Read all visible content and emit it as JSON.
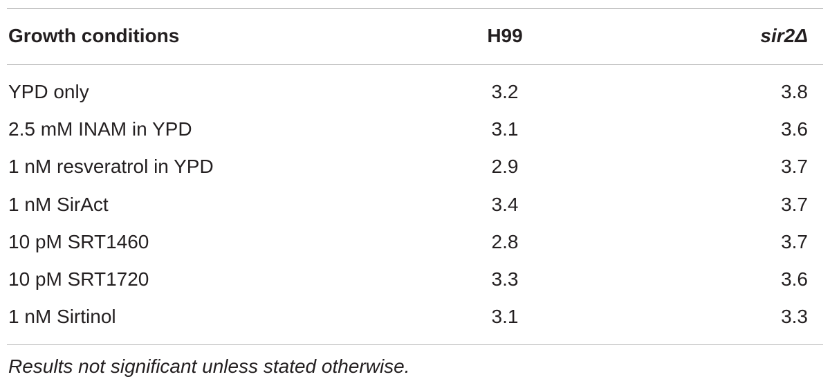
{
  "table": {
    "header": [
      "Growth conditions",
      "H99",
      "sir2Δ"
    ],
    "rows": [
      [
        "YPD only",
        3.2,
        3.8
      ],
      [
        "2.5 mM INAM in YPD",
        3.1,
        3.6
      ],
      [
        "1 nM resveratrol in YPD",
        2.9,
        3.7
      ],
      [
        "1 nM SirAct",
        3.4,
        3.7
      ],
      [
        "10 pM SRT1460",
        2.8,
        3.7
      ],
      [
        "10 pM SRT1720",
        3.3,
        3.6
      ],
      [
        "1 nM Sirtinol",
        3.1,
        3.3
      ]
    ],
    "footnote": "Results not significant unless stated otherwise."
  }
}
